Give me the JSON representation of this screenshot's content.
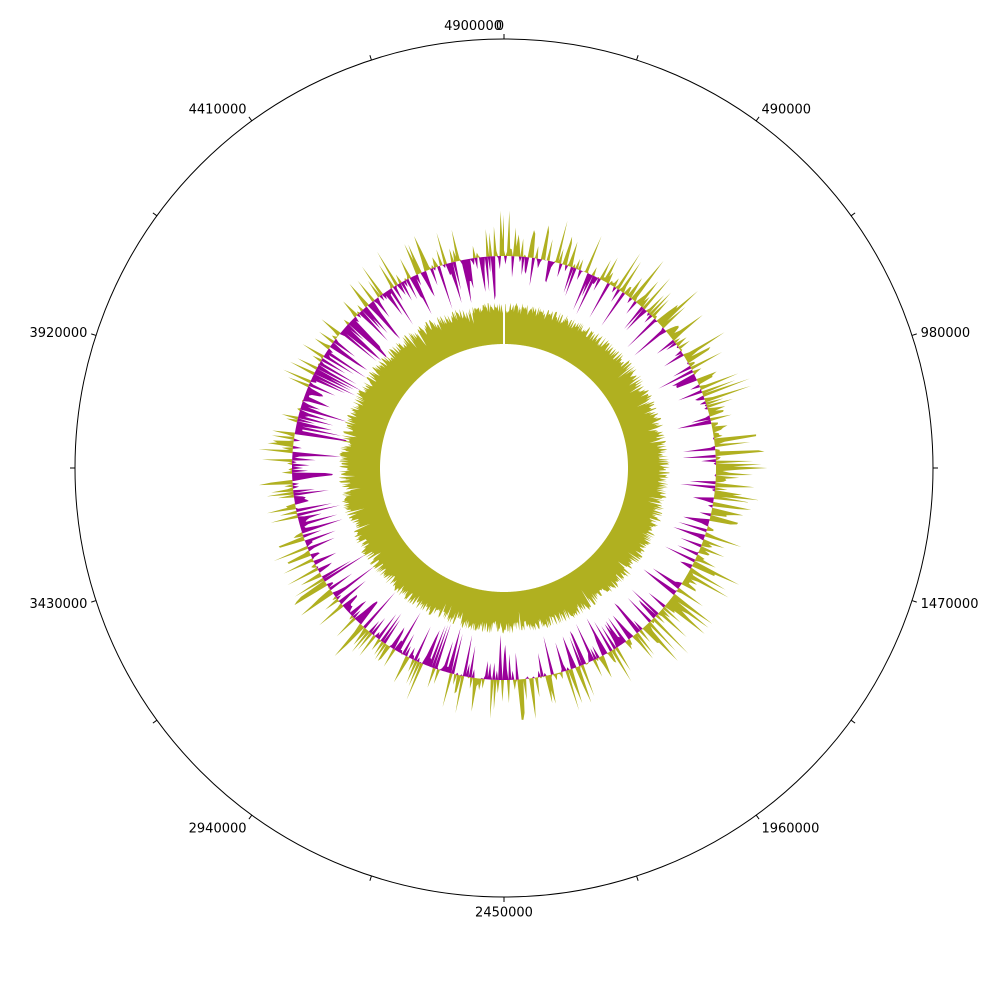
{
  "genome_length": 4900000,
  "axis": {
    "labeled_positions": [
      "0",
      "490000",
      "980000",
      "1470000",
      "1960000",
      "2450000",
      "2940000",
      "3430000",
      "3920000",
      "4410000",
      "4900000"
    ],
    "label_step_bp": 490000,
    "minor_step_bp": 245000
  },
  "colors": {
    "gc_skew_positive": "#b0b020",
    "gc_skew_negative": "#990099",
    "gc_content": "#b0b020",
    "outline": "#000000"
  },
  "chart_data": {
    "type": "circular-genome",
    "tracks": [
      {
        "id": "gc_skew",
        "kind": "bidirectional-histogram",
        "positive_color": "#b0b020",
        "negative_color": "#990099"
      },
      {
        "id": "gc_content",
        "kind": "histogram",
        "color": "#b0b020"
      }
    ]
  }
}
